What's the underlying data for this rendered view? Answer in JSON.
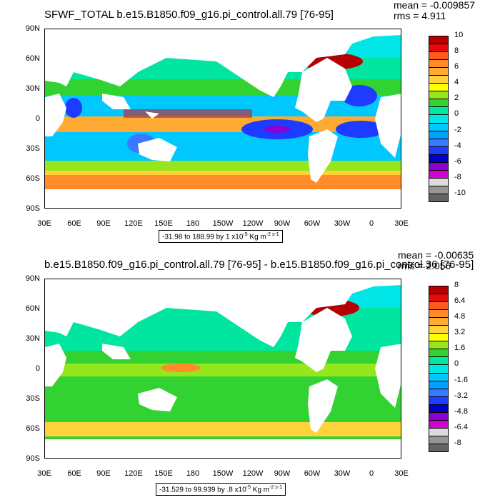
{
  "panels": [
    {
      "title": "SFWF_TOTAL b.e15.B1850.f09_g16.pi_control.all.79 [76-95]",
      "mean": "mean = -0.009857",
      "rms": "rms = 4.911",
      "range_prefix": "-31.98 to 188.99 by 1 x10",
      "range_exp": "-5",
      "range_unit": " Kg m",
      "range_unit_exp": "-2 s-1",
      "colorbar_labels": [
        "10",
        "8",
        "6",
        "4",
        "2",
        "0",
        "-2",
        "-4",
        "-6",
        "-8",
        "-10"
      ],
      "colors": [
        "#b40000",
        "#e60a0a",
        "#ff5a1e",
        "#ff8c28",
        "#ffaa32",
        "#ffd23c",
        "#ffff00",
        "#96e61e",
        "#32d232",
        "#00e6a0",
        "#00e6e6",
        "#00c8ff",
        "#00a0ff",
        "#3c78ff",
        "#1e3cff",
        "#0000c8",
        "#8c00d2",
        "#d200d2",
        "#dcdcdc",
        "#969696",
        "#646464"
      ]
    },
    {
      "title": "b.e15.B1850.f09_g16.pi_control.all.79 [76-95] - b.e15.B1850.f09_g16.pi_control.36 [76-95]",
      "mean": "mean = -0.00635",
      "rms": "rms = 2.056",
      "range_prefix": "-31.529 to 99.939 by .8 x10",
      "range_exp": "-5",
      "range_unit": " Kg m",
      "range_unit_exp": "-2 s-1",
      "colorbar_labels": [
        "8",
        "6.4",
        "4.8",
        "3.2",
        "1.6",
        "0",
        "-1.6",
        "-3.2",
        "-4.8",
        "-6.4",
        "-8"
      ],
      "colors": [
        "#b40000",
        "#e60a0a",
        "#ff5a1e",
        "#ff8c28",
        "#ffaa32",
        "#ffd23c",
        "#ffff00",
        "#96e61e",
        "#32d232",
        "#00e6a0",
        "#00e6e6",
        "#00c8ff",
        "#00a0ff",
        "#3c78ff",
        "#1e3cff",
        "#0000c8",
        "#8c00d2",
        "#d200d2",
        "#dcdcdc",
        "#969696",
        "#646464"
      ]
    }
  ],
  "lat_labels": [
    "90N",
    "60N",
    "30N",
    "0",
    "30S",
    "60S",
    "90S"
  ],
  "lon_labels": [
    "30E",
    "60E",
    "90E",
    "120E",
    "150E",
    "180",
    "150W",
    "120W",
    "90W",
    "60W",
    "30W",
    "0",
    "30E"
  ]
}
